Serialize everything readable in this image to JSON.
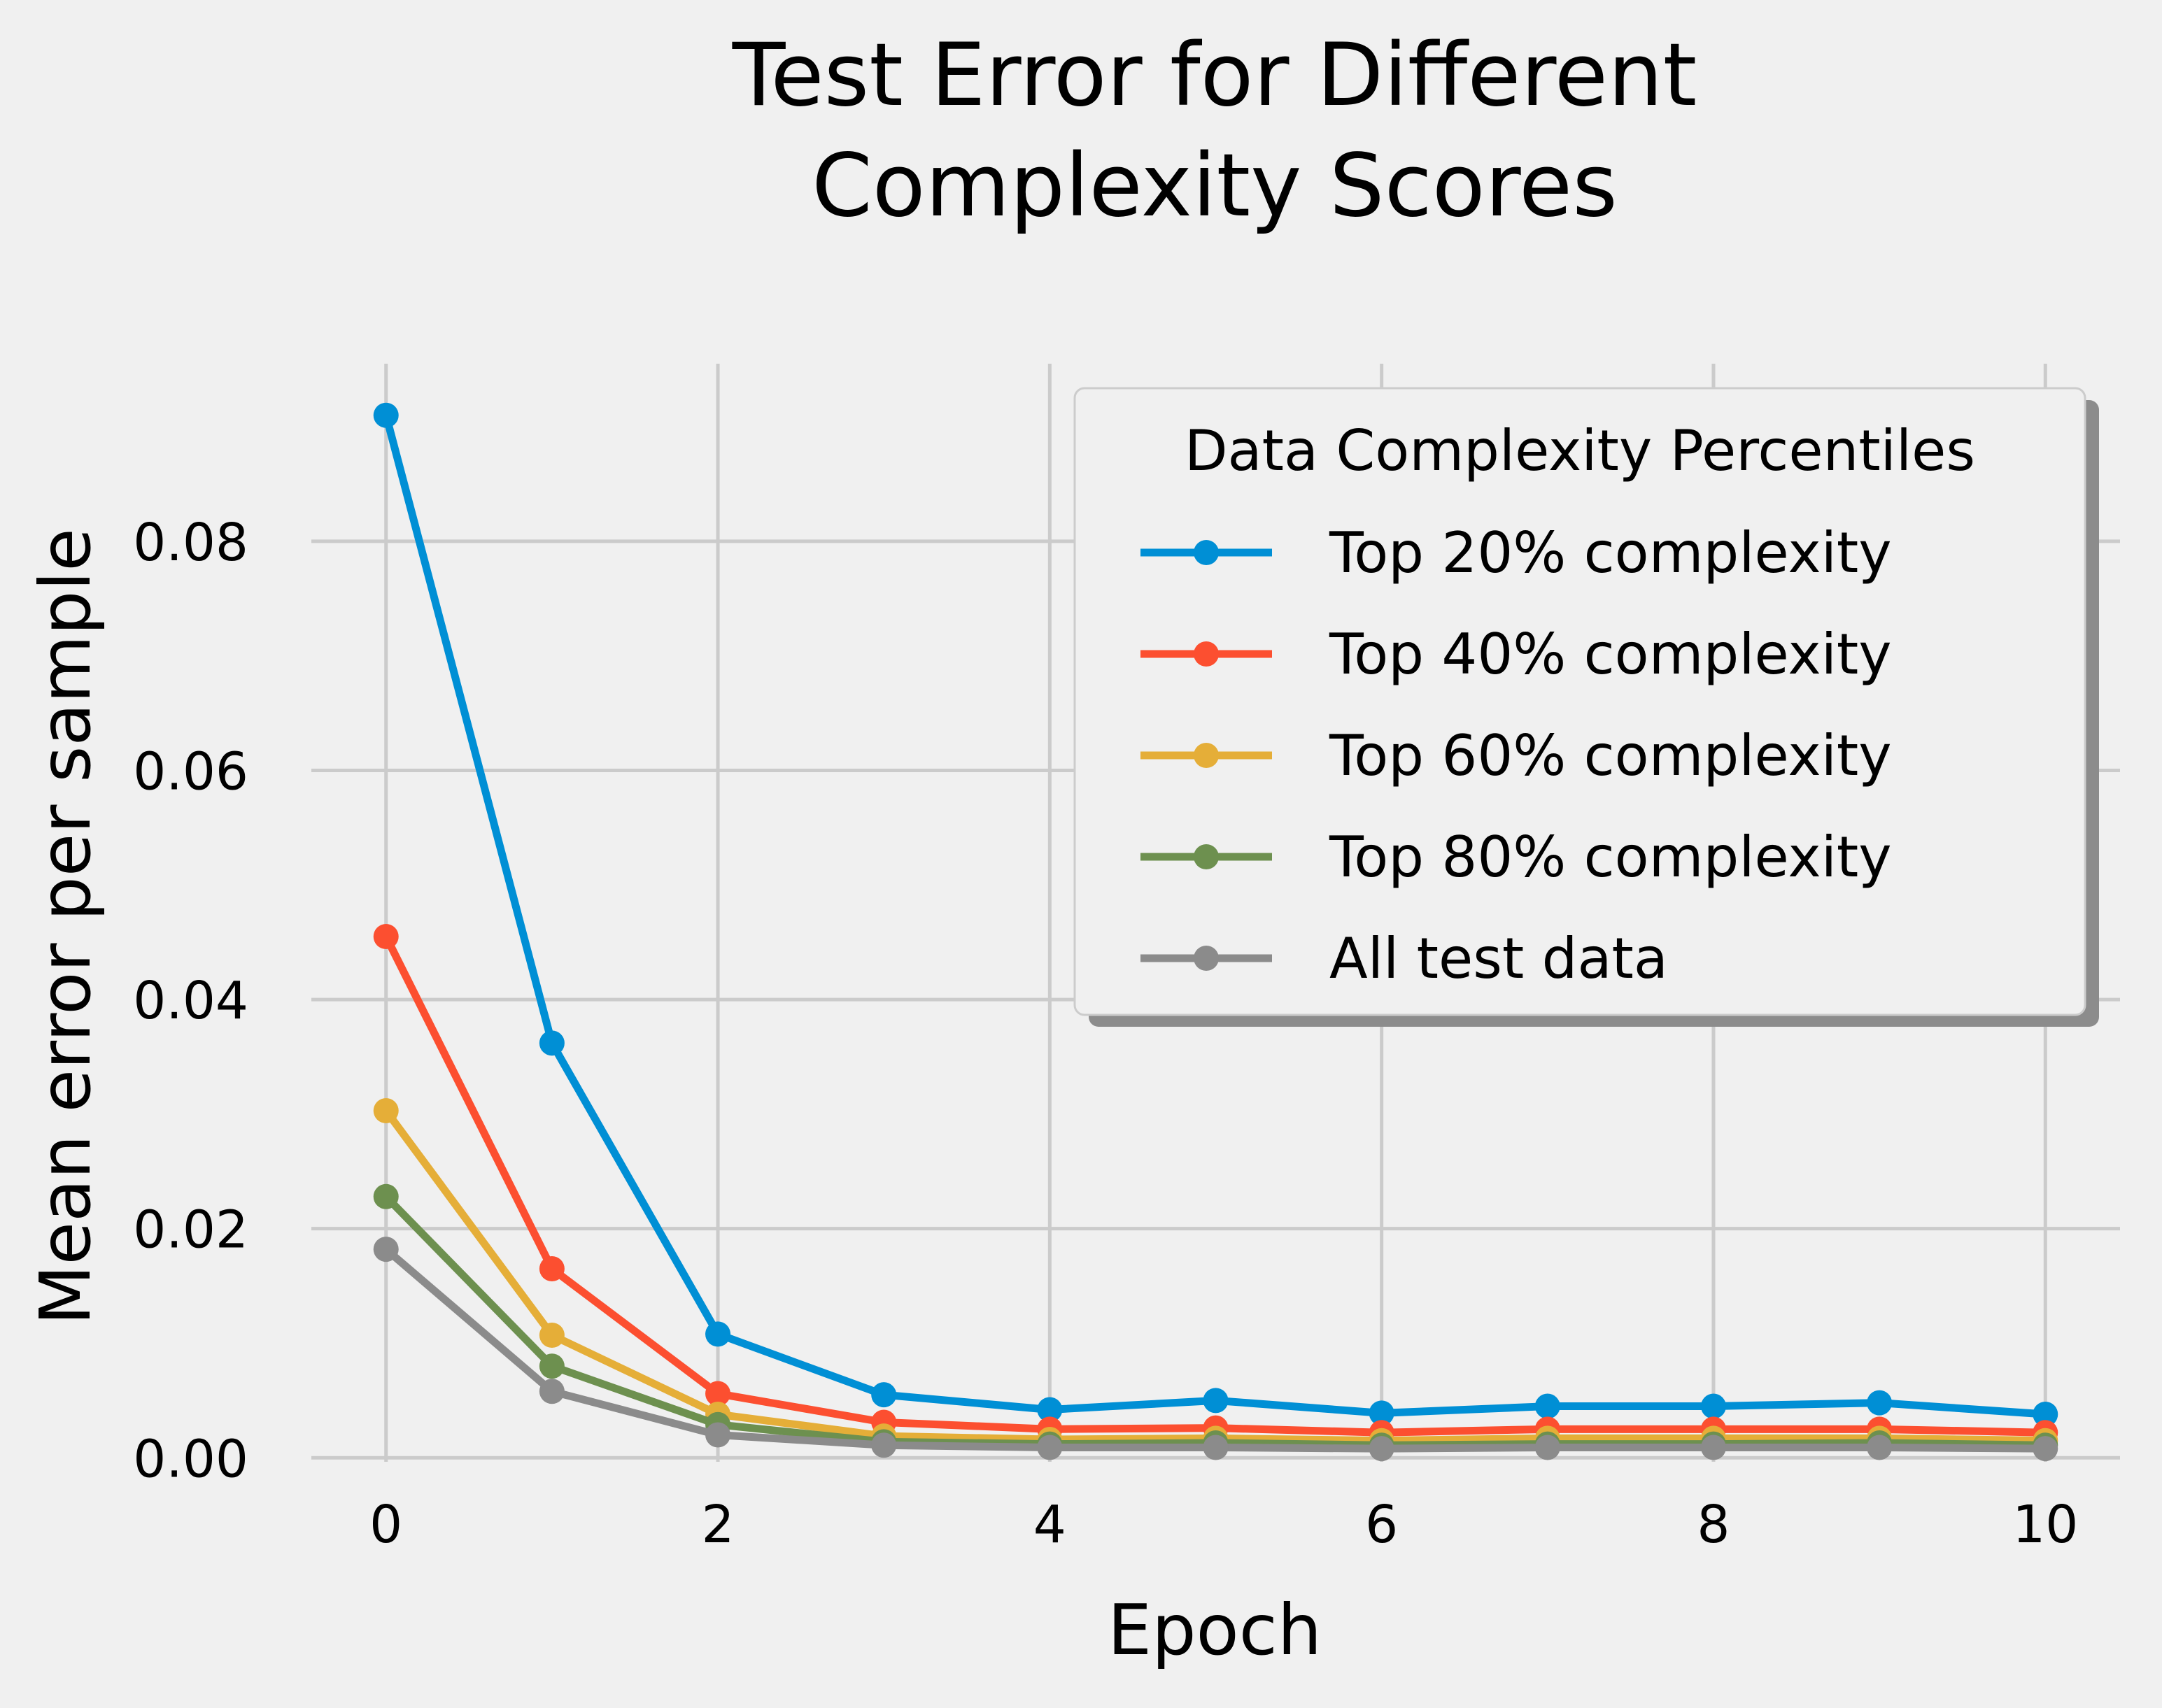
{
  "chart_data": {
    "type": "line",
    "title_lines": [
      "Test Error for Different",
      "Complexity Scores"
    ],
    "xlabel": "Epoch",
    "ylabel": "Mean error per sample",
    "xlim": [
      -0.45,
      10.45
    ],
    "ylim": [
      -0.00035,
      0.0955
    ],
    "xticks": [
      0,
      2,
      4,
      6,
      8,
      10
    ],
    "xtick_labels": [
      "0",
      "2",
      "4",
      "6",
      "8",
      "10"
    ],
    "yticks": [
      0,
      0.02,
      0.04,
      0.06,
      0.08
    ],
    "ytick_labels": [
      "0.00",
      "0.02",
      "0.04",
      "0.06",
      "0.08"
    ],
    "grid": true,
    "legend": {
      "title": "Data Complexity Percentiles",
      "placement": "top-right"
    },
    "x": [
      0,
      1,
      2,
      3,
      4,
      5,
      6,
      7,
      8,
      9,
      10
    ],
    "series": [
      {
        "name": "Top 20% complexity",
        "color": "#008fd5",
        "values": [
          0.091,
          0.0362,
          0.0108,
          0.0055,
          0.0042,
          0.005,
          0.0039,
          0.0045,
          0.0045,
          0.0048,
          0.0038
        ]
      },
      {
        "name": "Top 40% complexity",
        "color": "#fc4f30",
        "values": [
          0.0455,
          0.0165,
          0.0056,
          0.0031,
          0.0025,
          0.0026,
          0.0022,
          0.0025,
          0.0025,
          0.0025,
          0.0022
        ]
      },
      {
        "name": "Top 60% complexity",
        "color": "#e5ae38",
        "values": [
          0.0303,
          0.0107,
          0.0038,
          0.0019,
          0.0016,
          0.0017,
          0.0015,
          0.0017,
          0.0017,
          0.0017,
          0.0015
        ]
      },
      {
        "name": "Top 80% complexity",
        "color": "#6d904f",
        "values": [
          0.0228,
          0.008,
          0.0029,
          0.0014,
          0.0012,
          0.0013,
          0.0011,
          0.0012,
          0.0012,
          0.0013,
          0.0011
        ]
      },
      {
        "name": "All test data",
        "color": "#8b8b8b",
        "values": [
          0.0182,
          0.0058,
          0.002,
          0.0011,
          0.0009,
          0.0009,
          0.0008,
          0.0009,
          0.0009,
          0.0009,
          0.0008
        ]
      }
    ]
  },
  "colors": {
    "background": "#f0f0f0",
    "grid": "#cbcbcb",
    "legend_face": "#f0f0f0",
    "legend_edge": "#cccccc",
    "legend_shadow": "#8c8c8c"
  }
}
